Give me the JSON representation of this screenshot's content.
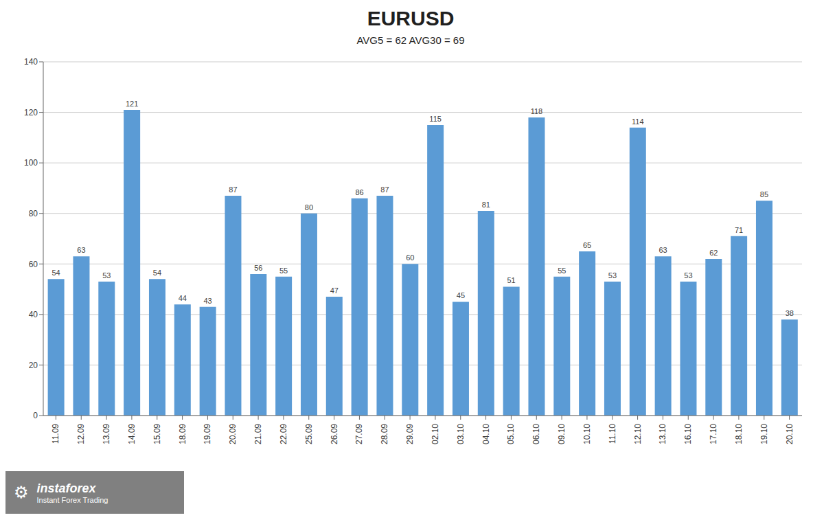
{
  "chart_data": {
    "type": "bar",
    "title": "EURUSD",
    "subtitle": "AVG5 = 62 AVG30 = 69",
    "categories": [
      "11.09",
      "12.09",
      "13.09",
      "14.09",
      "15.09",
      "18.09",
      "19.09",
      "20.09",
      "21.09",
      "22.09",
      "25.09",
      "26.09",
      "27.09",
      "28.09",
      "29.09",
      "02.10",
      "03.10",
      "04.10",
      "05.10",
      "06.10",
      "09.10",
      "10.10",
      "11.10",
      "12.10",
      "13.10",
      "16.10",
      "17.10",
      "18.10",
      "19.10",
      "20.10"
    ],
    "values": [
      54,
      63,
      53,
      121,
      54,
      44,
      43,
      87,
      56,
      55,
      80,
      47,
      86,
      87,
      60,
      115,
      45,
      81,
      51,
      118,
      55,
      65,
      53,
      114,
      63,
      53,
      62,
      71,
      85,
      38
    ],
    "color": "#5B9BD5",
    "ylim": [
      0,
      140
    ],
    "yticks": [
      0,
      20,
      40,
      60,
      80,
      100,
      120,
      140
    ],
    "grid": true,
    "data_labels": true,
    "annotations": [
      "⚙",
      "instaforex",
      "Instant Forex Trading"
    ]
  }
}
